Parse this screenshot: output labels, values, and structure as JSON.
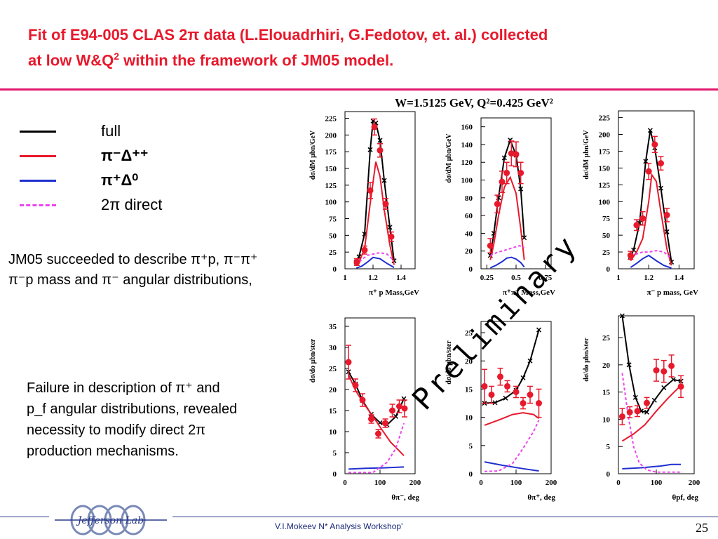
{
  "slide": {
    "title_line1": "Fit of E94-005 CLAS 2π data (L.Elouadrhiri, G.Fedotov, et. al.) collected",
    "title_line2_pre": "at low W&Q",
    "title_line2_sup": "2",
    "title_line2_post": " within the framework of JM05 model.",
    "plot_header": "W=1.5125 GeV, Q²=0.425 GeV²",
    "preliminary": "Preliminary",
    "footer_text": "V.I.Mokeev  N* Analysis Workshop'",
    "page_number": "25",
    "logo_text": "Jefferson Lab"
  },
  "legend": [
    {
      "label": "full",
      "color": "#000000",
      "dashed": false
    },
    {
      "label": "π⁻Δ⁺⁺",
      "color": "#e8192c",
      "dashed": false
    },
    {
      "label": "π⁺Δ⁰",
      "color": "#1f2fd0",
      "dashed": false
    },
    {
      "label": "2π direct",
      "color": "#ee44ee",
      "dashed": true
    }
  ],
  "notes": {
    "note1_line1": "JM05 succeeded to describe π⁺p, π⁻π⁺",
    "note1_line2": "π⁻p mass and π⁻ angular distributions,",
    "note2_line1": "Failure in description of π⁺ and",
    "note2_line2": "p_f angular distributions, revealed",
    "note2_line3": "necessity to modify direct 2π",
    "note2_line4": "production mechanisms."
  },
  "colors": {
    "title": "#e8192c",
    "bar": "#e0186e",
    "full": "#000000",
    "delta_pp": "#e8192c",
    "delta_0": "#1f2fd0",
    "direct": "#ee44ee",
    "data": "#e8192c"
  },
  "chart_data": [
    {
      "type": "line",
      "xlabel": "π⁺ p Mass,GeV",
      "ylabel": "dσ/dM μbn/GeV",
      "xlim": [
        1.0,
        1.5
      ],
      "ylim": [
        0,
        235
      ],
      "xticks": [
        "1",
        "1.2",
        "1.4"
      ],
      "xtick_values": [
        1.0,
        1.2,
        1.4
      ],
      "yticks": [
        0,
        25,
        50,
        75,
        100,
        125,
        150,
        175,
        200,
        225
      ],
      "points": {
        "x": [
          1.085,
          1.14,
          1.18,
          1.21,
          1.25,
          1.29,
          1.33
        ],
        "y": [
          10,
          28,
          117,
          212,
          177,
          97,
          48
        ],
        "err": [
          5,
          6,
          12,
          12,
          10,
          8,
          7
        ]
      },
      "series": [
        {
          "name": "full",
          "x": [
            1.08,
            1.1,
            1.14,
            1.18,
            1.2,
            1.22,
            1.25,
            1.28,
            1.32,
            1.35
          ],
          "y": [
            10,
            18,
            52,
            178,
            221,
            218,
            192,
            132,
            62,
            12
          ]
        },
        {
          "name": "π⁻Δ⁺⁺",
          "x": [
            1.08,
            1.1,
            1.14,
            1.18,
            1.22,
            1.25,
            1.28,
            1.32,
            1.35
          ],
          "y": [
            5,
            10,
            30,
            98,
            160,
            138,
            88,
            36,
            6
          ]
        },
        {
          "name": "π⁺Δ⁰",
          "x": [
            1.08,
            1.12,
            1.16,
            1.2,
            1.25,
            1.3,
            1.35
          ],
          "y": [
            1,
            4,
            10,
            17,
            15,
            8,
            2
          ]
        },
        {
          "name": "2π direct",
          "x": [
            1.08,
            1.12,
            1.16,
            1.2,
            1.25,
            1.3,
            1.35
          ],
          "y": [
            5,
            14,
            20,
            22,
            24,
            22,
            12
          ]
        }
      ]
    },
    {
      "type": "line",
      "xlabel": "π⁺π⁻ Mass,GeV",
      "ylabel": "dσ/dM μbn/GeV",
      "xlim": [
        0.2,
        0.8
      ],
      "ylim": [
        0,
        170
      ],
      "xticks": [
        "0.25",
        "0.5",
        "0.75"
      ],
      "xtick_values": [
        0.25,
        0.5,
        0.75
      ],
      "yticks": [
        0,
        20,
        40,
        60,
        80,
        100,
        120,
        140,
        160
      ],
      "points": {
        "x": [
          0.28,
          0.34,
          0.38,
          0.42,
          0.46,
          0.5,
          0.54
        ],
        "y": [
          26,
          73,
          98,
          108,
          130,
          129,
          108
        ],
        "err": [
          8,
          10,
          12,
          12,
          14,
          14,
          12
        ]
      },
      "series": [
        {
          "name": "full",
          "x": [
            0.28,
            0.31,
            0.35,
            0.4,
            0.45,
            0.5,
            0.54,
            0.57
          ],
          "y": [
            15,
            40,
            80,
            125,
            145,
            128,
            90,
            35
          ]
        },
        {
          "name": "π⁻Δ⁺⁺",
          "x": [
            0.28,
            0.31,
            0.35,
            0.4,
            0.45,
            0.5,
            0.54,
            0.57
          ],
          "y": [
            10,
            28,
            60,
            92,
            103,
            85,
            45,
            10
          ]
        },
        {
          "name": "π⁺Δ⁰",
          "x": [
            0.28,
            0.33,
            0.38,
            0.42,
            0.46,
            0.5,
            0.54,
            0.57
          ],
          "y": [
            1,
            4,
            8,
            12,
            13,
            11,
            7,
            2
          ]
        },
        {
          "name": "2π direct",
          "x": [
            0.28,
            0.33,
            0.38,
            0.43,
            0.48,
            0.53,
            0.57
          ],
          "y": [
            15,
            18,
            20,
            22,
            24,
            26,
            24
          ]
        }
      ]
    },
    {
      "type": "line",
      "xlabel": "π⁻ p mass, GeV",
      "ylabel": "dσ/dM μbn/GeV",
      "xlim": [
        1.0,
        1.5
      ],
      "ylim": [
        0,
        235
      ],
      "xticks": [
        "1",
        "1.2",
        "1.4"
      ],
      "xtick_values": [
        1.0,
        1.2,
        1.4
      ],
      "yticks": [
        0,
        25,
        50,
        75,
        100,
        125,
        150,
        175,
        200,
        225
      ],
      "points": {
        "x": [
          1.08,
          1.12,
          1.16,
          1.2,
          1.24,
          1.28,
          1.32
        ],
        "y": [
          20,
          65,
          75,
          145,
          185,
          157,
          80
        ],
        "err": [
          6,
          8,
          10,
          12,
          12,
          10,
          10
        ]
      },
      "series": [
        {
          "name": "full",
          "x": [
            1.08,
            1.1,
            1.14,
            1.18,
            1.21,
            1.24,
            1.28,
            1.32,
            1.35
          ],
          "y": [
            18,
            28,
            68,
            160,
            206,
            180,
            120,
            55,
            10
          ]
        },
        {
          "name": "π⁻Δ⁺⁺",
          "x": [
            1.08,
            1.12,
            1.16,
            1.2,
            1.22,
            1.25,
            1.28,
            1.32,
            1.35
          ],
          "y": [
            12,
            25,
            45,
            100,
            140,
            130,
            85,
            30,
            5
          ]
        },
        {
          "name": "π⁺Δ⁰",
          "x": [
            1.08,
            1.12,
            1.16,
            1.2,
            1.25,
            1.3,
            1.35
          ],
          "y": [
            2,
            8,
            15,
            20,
            12,
            5,
            1
          ]
        },
        {
          "name": "2π direct",
          "x": [
            1.08,
            1.12,
            1.16,
            1.2,
            1.25,
            1.3,
            1.35
          ],
          "y": [
            20,
            22,
            25,
            25,
            27,
            25,
            15
          ]
        }
      ]
    },
    {
      "type": "line",
      "xlabel": "θπ⁻, deg",
      "ylabel": "dσ/do μbn/ster",
      "xlim": [
        0,
        200
      ],
      "ylim": [
        0,
        37
      ],
      "xticks": [
        "0",
        "100",
        "200"
      ],
      "xtick_values": [
        0,
        100,
        200
      ],
      "yticks": [
        0,
        5,
        10,
        15,
        20,
        25,
        30,
        35
      ],
      "points": {
        "x": [
          10,
          30,
          50,
          75,
          95,
          115,
          135,
          155,
          170
        ],
        "y": [
          26.5,
          21,
          17.5,
          13,
          9.5,
          12,
          15,
          16,
          15.5
        ],
        "err": [
          4,
          1.5,
          1.5,
          1,
          1,
          1,
          1.5,
          1.5,
          2
        ]
      },
      "series": [
        {
          "name": "full",
          "x": [
            10,
            30,
            50,
            75,
            100,
            120,
            145,
            168
          ],
          "y": [
            24.2,
            21.3,
            17.4,
            14.1,
            12.1,
            11.6,
            13.6,
            17.8
          ]
        },
        {
          "name": "π⁻Δ⁺⁺",
          "x": [
            10,
            30,
            55,
            80,
            105,
            130,
            155,
            168
          ],
          "y": [
            23.5,
            19.8,
            16.5,
            13.6,
            10.5,
            7.5,
            5.4,
            4.3
          ]
        },
        {
          "name": "π⁺Δ⁰",
          "x": [
            10,
            60,
            110,
            168
          ],
          "y": [
            1.1,
            1.3,
            1.4,
            1.6
          ]
        },
        {
          "name": "2π direct",
          "x": [
            10,
            80,
            120,
            145,
            168
          ],
          "y": [
            0.3,
            0.3,
            2.7,
            6,
            12
          ]
        }
      ]
    },
    {
      "type": "line",
      "xlabel": "θπ⁺, deg",
      "ylabel": "dσ/do μbn/ster",
      "xlim": [
        0,
        200
      ],
      "ylim": [
        0,
        27
      ],
      "xticks": [
        "0",
        "100",
        "200"
      ],
      "xtick_values": [
        0,
        100,
        200
      ],
      "yticks": [
        0,
        5,
        10,
        15,
        20,
        25
      ],
      "points": {
        "x": [
          10,
          30,
          55,
          75,
          100,
          120,
          140,
          165
        ],
        "y": [
          15.5,
          14,
          17.2,
          15.5,
          14.5,
          12.5,
          14,
          12.5
        ],
        "err": [
          3,
          1.5,
          1.5,
          1,
          1,
          1,
          1.5,
          2.5
        ]
      },
      "series": [
        {
          "name": "full",
          "x": [
            10,
            40,
            70,
            100,
            120,
            140,
            165
          ],
          "y": [
            12.5,
            12.6,
            13.4,
            14.8,
            17,
            20,
            25.5
          ]
        },
        {
          "name": "π⁻Δ⁺⁺",
          "x": [
            10,
            50,
            90,
            120,
            150,
            165
          ],
          "y": [
            8.6,
            9.5,
            10.5,
            10.8,
            10.5,
            9.8
          ]
        },
        {
          "name": "π⁺Δ⁰",
          "x": [
            10,
            60,
            120,
            165
          ],
          "y": [
            2.1,
            1.5,
            0.9,
            0.5
          ]
        },
        {
          "name": "2π direct",
          "x": [
            10,
            50,
            90,
            120,
            150,
            165
          ],
          "y": [
            0.4,
            0.5,
            1.8,
            4.5,
            7.5,
            9.5
          ]
        }
      ]
    },
    {
      "type": "line",
      "xlabel": "θpf, deg",
      "ylabel": "dσ/do μbn/ster",
      "xlim": [
        0,
        200
      ],
      "ylim": [
        0,
        29
      ],
      "xticks": [
        "0",
        "100",
        "200"
      ],
      "xtick_values": [
        0,
        100,
        200
      ],
      "yticks": [
        0,
        5,
        10,
        15,
        20,
        25
      ],
      "points": {
        "x": [
          10,
          30,
          50,
          75,
          100,
          120,
          140,
          165
        ],
        "y": [
          10.5,
          11.3,
          11.5,
          13,
          19,
          18.8,
          19.8,
          16
        ],
        "err": [
          1.5,
          1,
          1,
          1,
          2,
          2,
          2,
          2
        ]
      },
      "series": [
        {
          "name": "full",
          "x": [
            10,
            28,
            45,
            60,
            75,
            95,
            120,
            145,
            165
          ],
          "y": [
            29,
            20,
            14,
            11.5,
            11.3,
            13.5,
            15.8,
            17.3,
            17
          ]
        },
        {
          "name": "π⁻Δ⁺⁺",
          "x": [
            10,
            40,
            70,
            100,
            130,
            150,
            165
          ],
          "y": [
            6,
            7.3,
            9,
            11.5,
            13.8,
            15.2,
            16.2
          ]
        },
        {
          "name": "π⁺Δ⁰",
          "x": [
            10,
            60,
            110,
            140,
            165
          ],
          "y": [
            0.9,
            1.1,
            1.4,
            1.7,
            1.7
          ]
        },
        {
          "name": "2π direct",
          "x": [
            10,
            25,
            40,
            55,
            75,
            100,
            165
          ],
          "y": [
            18.5,
            11,
            5,
            2,
            0.7,
            0.3,
            0.3
          ]
        }
      ]
    }
  ]
}
